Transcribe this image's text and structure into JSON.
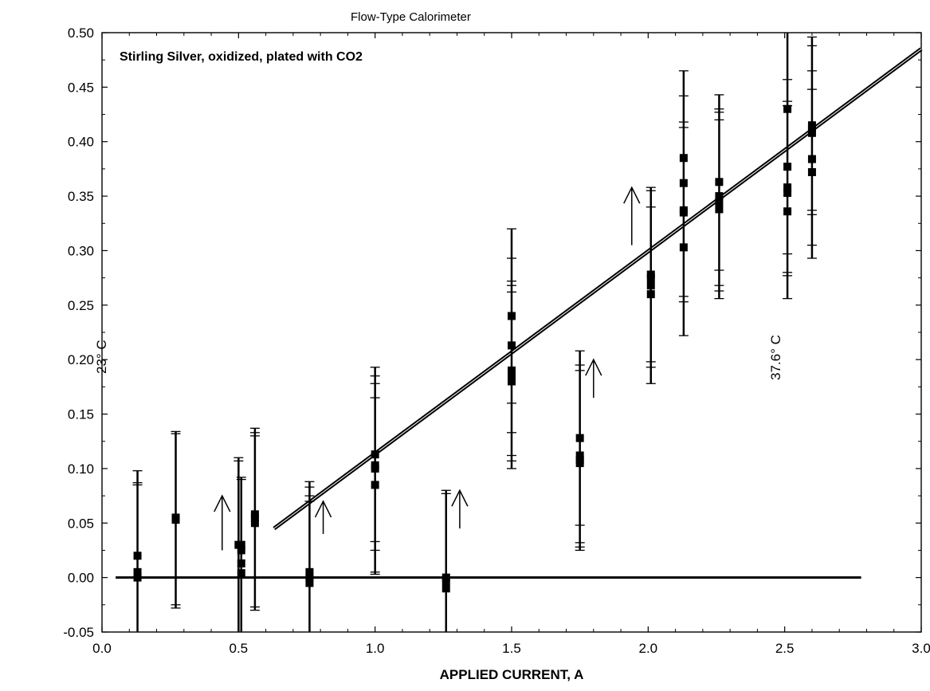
{
  "chart_data": {
    "type": "scatter",
    "title": "Flow-Type Calorimeter",
    "xlabel": "APPLIED CURRENT, A",
    "ylabel": "",
    "xlim": [
      0.0,
      3.0
    ],
    "ylim": [
      -0.05,
      0.5
    ],
    "x_ticks": [
      "0.0",
      "0.5",
      "1.0",
      "1.5",
      "2.0",
      "2.5",
      "3.0"
    ],
    "y_ticks": [
      "-0.05",
      "0.00",
      "0.05",
      "0.10",
      "0.15",
      "0.20",
      "0.25",
      "0.30",
      "0.35",
      "0.40",
      "0.45",
      "0.50"
    ],
    "grid": false,
    "annotations": {
      "sample": "Stirling Silver, oxidized, plated with CO2",
      "temp_start": "23° C",
      "temp_end": "37.6° C"
    },
    "series": [
      {
        "type": "scatter",
        "points": [
          {
            "x": 0.13,
            "y": 0.02,
            "err_low": -0.05,
            "err_high": 0.098,
            "extra_ticks": [
              0.085,
              0.087
            ]
          },
          {
            "x": 0.13,
            "y": 0.0
          },
          {
            "x": 0.13,
            "y": 0.005
          },
          {
            "x": 0.27,
            "y": 0.053,
            "err_low": -0.028,
            "err_high": 0.134,
            "extra_ticks": [
              -0.025,
              0.132
            ]
          },
          {
            "x": 0.27,
            "y": 0.055
          },
          {
            "x": 0.5,
            "y": 0.03,
            "err_low": -0.05,
            "err_high": 0.11,
            "extra_ticks": [
              0.107
            ]
          },
          {
            "x": 0.51,
            "y": 0.025,
            "err_low": -0.05,
            "err_high": 0.092,
            "extra_ticks": [
              0.09
            ]
          },
          {
            "x": 0.51,
            "y": 0.013
          },
          {
            "x": 0.51,
            "y": 0.004
          },
          {
            "x": 0.51,
            "y": 0.03
          },
          {
            "x": 0.56,
            "y": 0.055,
            "err_low": -0.03,
            "err_high": 0.137,
            "extra_ticks": [
              0.133,
              -0.027,
              0.13
            ]
          },
          {
            "x": 0.56,
            "y": 0.05
          },
          {
            "x": 0.56,
            "y": 0.058
          },
          {
            "x": 0.76,
            "y": 0.005,
            "err_low": -0.05,
            "err_high": 0.088,
            "extra_ticks": [
              0.083,
              0.075,
              0.07
            ]
          },
          {
            "x": 0.76,
            "y": -0.005
          },
          {
            "x": 0.76,
            "y": 0.0
          },
          {
            "x": 1.0,
            "y": 0.113,
            "err_low": 0.003,
            "err_high": 0.193,
            "extra_ticks": [
              0.185,
              0.178,
              0.165,
              0.033,
              0.025,
              0.005
            ]
          },
          {
            "x": 1.0,
            "y": 0.1
          },
          {
            "x": 1.0,
            "y": 0.085
          },
          {
            "x": 1.0,
            "y": 0.103
          },
          {
            "x": 1.26,
            "y": 0.0,
            "err_low": -0.05,
            "err_high": 0.08,
            "extra_ticks": [
              0.077
            ]
          },
          {
            "x": 1.26,
            "y": -0.01
          },
          {
            "x": 1.26,
            "y": -0.003
          },
          {
            "x": 1.5,
            "y": 0.24,
            "err_low": 0.1,
            "err_high": 0.32,
            "extra_ticks": [
              0.293,
              0.272,
              0.268,
              0.262,
              0.16,
              0.133,
              0.112,
              0.107
            ]
          },
          {
            "x": 1.5,
            "y": 0.213
          },
          {
            "x": 1.5,
            "y": 0.19
          },
          {
            "x": 1.5,
            "y": 0.18
          },
          {
            "x": 1.5,
            "y": 0.187
          },
          {
            "x": 1.75,
            "y": 0.128,
            "err_low": 0.025,
            "err_high": 0.208,
            "extra_ticks": [
              0.195,
              0.19,
              0.048,
              0.032,
              0.028
            ]
          },
          {
            "x": 1.75,
            "y": 0.112
          },
          {
            "x": 1.75,
            "y": 0.105
          },
          {
            "x": 1.75,
            "y": 0.108
          },
          {
            "x": 2.01,
            "y": 0.278,
            "err_low": 0.178,
            "err_high": 0.358,
            "extra_ticks": [
              0.355,
              0.34,
              0.198,
              0.193
            ]
          },
          {
            "x": 2.01,
            "y": 0.268
          },
          {
            "x": 2.01,
            "y": 0.26
          },
          {
            "x": 2.01,
            "y": 0.275
          },
          {
            "x": 2.13,
            "y": 0.385,
            "err_low": 0.222,
            "err_high": 0.465,
            "extra_ticks": [
              0.442,
              0.418,
              0.413,
              0.258,
              0.253
            ]
          },
          {
            "x": 2.13,
            "y": 0.362
          },
          {
            "x": 2.13,
            "y": 0.335
          },
          {
            "x": 2.13,
            "y": 0.303
          },
          {
            "x": 2.13,
            "y": 0.337
          },
          {
            "x": 2.26,
            "y": 0.363,
            "err_low": 0.256,
            "err_high": 0.443,
            "extra_ticks": [
              0.43,
              0.427,
              0.42,
              0.282,
              0.268,
              0.263
            ]
          },
          {
            "x": 2.26,
            "y": 0.35
          },
          {
            "x": 2.26,
            "y": 0.345
          },
          {
            "x": 2.26,
            "y": 0.338
          },
          {
            "x": 2.51,
            "y": 0.43,
            "err_low": 0.256,
            "err_high": 0.5,
            "extra_ticks": [
              0.457,
              0.437,
              0.433,
              0.297,
              0.28,
              0.277
            ]
          },
          {
            "x": 2.51,
            "y": 0.377
          },
          {
            "x": 2.51,
            "y": 0.358
          },
          {
            "x": 2.51,
            "y": 0.353
          },
          {
            "x": 2.51,
            "y": 0.336
          },
          {
            "x": 2.6,
            "y": 0.415,
            "err_low": 0.293,
            "err_high": 0.496,
            "extra_ticks": [
              0.488,
              0.465,
              0.448,
              0.337,
              0.333,
              0.305
            ]
          },
          {
            "x": 2.6,
            "y": 0.408
          },
          {
            "x": 2.6,
            "y": 0.384
          },
          {
            "x": 2.6,
            "y": 0.372
          },
          {
            "x": 2.6,
            "y": 0.412
          }
        ]
      }
    ],
    "lines": [
      {
        "kind": "fit",
        "x": [
          0.63,
          3.0
        ],
        "y": [
          0.045,
          0.485
        ]
      },
      {
        "kind": "baseline",
        "x": [
          0.05,
          2.78
        ],
        "y": [
          0.0,
          0.0
        ]
      }
    ],
    "arrows": [
      {
        "x": 0.44,
        "y_start": 0.025,
        "y_end": 0.075
      },
      {
        "x": 0.81,
        "y_start": 0.04,
        "y_end": 0.07
      },
      {
        "x": 1.31,
        "y_start": 0.045,
        "y_end": 0.08
      },
      {
        "x": 1.8,
        "y_start": 0.165,
        "y_end": 0.2
      },
      {
        "x": 1.94,
        "y_start": 0.305,
        "y_end": 0.358
      }
    ]
  }
}
